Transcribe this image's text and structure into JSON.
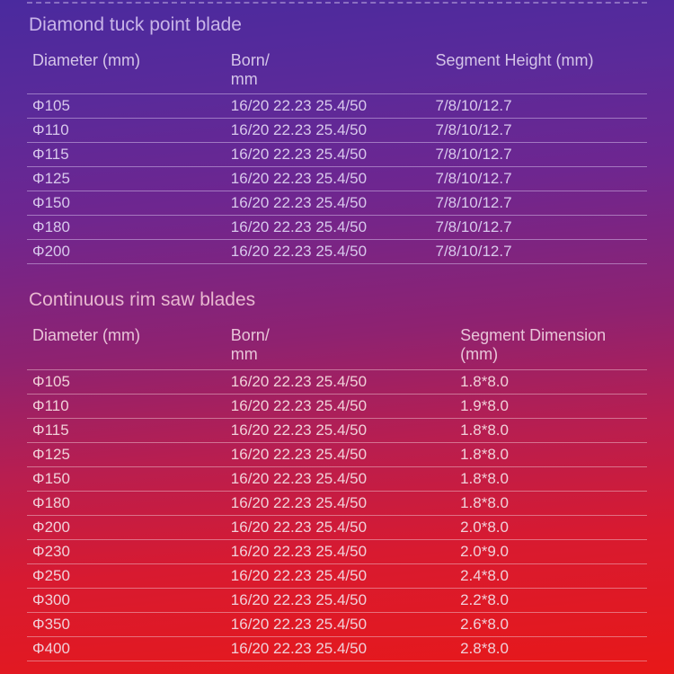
{
  "table1": {
    "title": "Diamond tuck point blade",
    "headers": {
      "diameter": "Diameter (mm)",
      "born": "Born/\nmm",
      "segment": "Segment Height  (mm)"
    },
    "rows": [
      {
        "d": "Φ105",
        "b": "16/20 22.23 25.4/50",
        "s": "7/8/10/12.7"
      },
      {
        "d": "Φ110",
        "b": "16/20 22.23 25.4/50",
        "s": "7/8/10/12.7"
      },
      {
        "d": "Φ115",
        "b": "16/20 22.23 25.4/50",
        "s": "7/8/10/12.7"
      },
      {
        "d": "Φ125",
        "b": "16/20 22.23 25.4/50",
        "s": "7/8/10/12.7"
      },
      {
        "d": "Φ150",
        "b": "16/20 22.23 25.4/50",
        "s": "7/8/10/12.7"
      },
      {
        "d": "Φ180",
        "b": "16/20 22.23 25.4/50",
        "s": "7/8/10/12.7"
      },
      {
        "d": "Φ200",
        "b": "16/20 22.23 25.4/50",
        "s": "7/8/10/12.7"
      }
    ]
  },
  "table2": {
    "title": "Continuous rim saw blades",
    "headers": {
      "diameter": "Diameter (mm)",
      "born": "Born/\nmm",
      "segment": "Segment Dimension  (mm)"
    },
    "rows": [
      {
        "d": "Φ105",
        "b": "16/20 22.23 25.4/50",
        "s": "1.8*8.0"
      },
      {
        "d": "Φ110",
        "b": "16/20 22.23 25.4/50",
        "s": "1.9*8.0"
      },
      {
        "d": "Φ115",
        "b": "16/20 22.23 25.4/50",
        "s": "1.8*8.0"
      },
      {
        "d": "Φ125",
        "b": "16/20 22.23 25.4/50",
        "s": "1.8*8.0"
      },
      {
        "d": "Φ150",
        "b": "16/20 22.23 25.4/50",
        "s": "1.8*8.0"
      },
      {
        "d": "Φ180",
        "b": "16/20 22.23 25.4/50",
        "s": "1.8*8.0"
      },
      {
        "d": "Φ200",
        "b": "16/20 22.23 25.4/50",
        "s": "2.0*8.0"
      },
      {
        "d": "Φ230",
        "b": "16/20 22.23 25.4/50",
        "s": "2.0*9.0"
      },
      {
        "d": "Φ250",
        "b": "16/20 22.23 25.4/50",
        "s": "2.4*8.0"
      },
      {
        "d": "Φ300",
        "b": "16/20 22.23 25.4/50",
        "s": "2.2*8.0"
      },
      {
        "d": "Φ350",
        "b": "16/20 22.23 25.4/50",
        "s": "2.6*8.0"
      },
      {
        "d": "Φ400",
        "b": "16/20 22.23 25.4/50",
        "s": "2.8*8.0"
      }
    ]
  }
}
